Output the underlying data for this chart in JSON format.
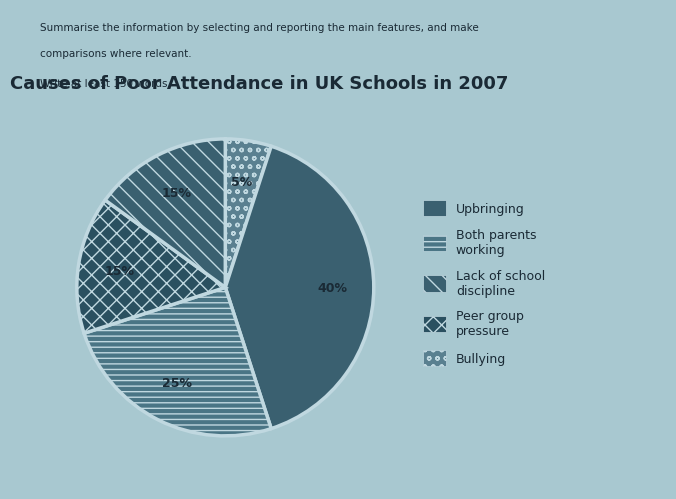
{
  "title": "Causes of Poor Attendance in UK Schools in 2007",
  "slices": [
    {
      "label": "Upbringing",
      "value": 40,
      "hatch": "===",
      "color": "#3a6070"
    },
    {
      "label": "Both parents\nworking",
      "value": 25,
      "hatch": "---",
      "color": "#4a7585"
    },
    {
      "label": "Lack of school\ndiscipline",
      "value": 15,
      "hatch": "\\\\",
      "color": "#3a6070"
    },
    {
      "label": "Peer group\npressure",
      "value": 15,
      "hatch": "xx",
      "color": "#2a5060"
    },
    {
      "label": "Bullying",
      "value": 5,
      "hatch": "oo",
      "color": "#5a8090"
    }
  ],
  "slice_order": [
    4,
    0,
    1,
    3,
    2
  ],
  "background_color": "#a8c8d0",
  "chart_bg": "#b8d5dc",
  "title_fontsize": 13,
  "edge_color": "#c0d8e0",
  "text_color": "#1a2a35",
  "start_angle": 90,
  "pct_labels": [
    "5%",
    "40%",
    "25%",
    "15%",
    "15%"
  ],
  "header_text1": "Summarise the information by selecting and reporting the main features, and make",
  "header_text2": "comparisons where relevant.",
  "header_text3": "Write at least 150 words."
}
